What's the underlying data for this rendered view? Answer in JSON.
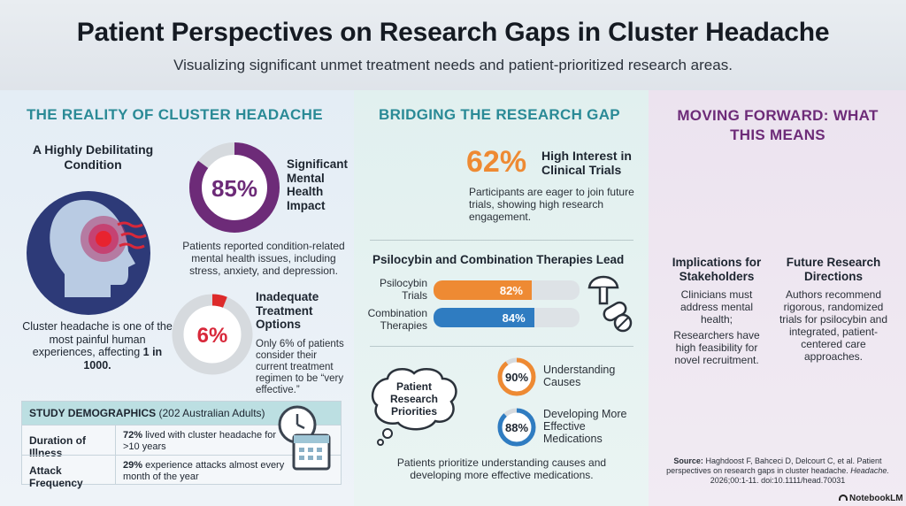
{
  "header": {
    "title": "Patient Perspectives on Research Gaps in Cluster Headache",
    "subtitle": "Visualizing significant unmet treatment needs and patient-prioritized research areas."
  },
  "reality": {
    "heading": "THE REALITY OF CLUSTER HEADACHE",
    "condition_title": "A Highly Debilitating Condition",
    "condition_text": "Cluster headache is one of the most painful human experiences, affecting",
    "condition_stat": "1 in 1000.",
    "mental": {
      "percent": 85,
      "label": "85%",
      "title": "Significant Mental Health Impact",
      "text": "Patients reported condition-related mental health issues, including stress, anxiety, and depression."
    },
    "treatment": {
      "percent": 6,
      "label": "6%",
      "title": "Inadequate Treatment Options",
      "text": "Only 6% of patients consider their current treatment regimen to be “very effective.”"
    },
    "demographics": {
      "heading": "STUDY DEMOGRAPHICS",
      "heading_detail": "(202 Australian Adults)",
      "rows": [
        {
          "label": "Duration of Illness",
          "stat": "72%",
          "text": "lived with cluster headache for >10 years"
        },
        {
          "label": "Attack Frequency",
          "stat": "29%",
          "text": "experience attacks almost every month of the year"
        }
      ]
    }
  },
  "gap": {
    "heading": "BRIDGING THE RESEARCH GAP",
    "interest_pct": "62%",
    "interest_title": "High Interest in Clinical Trials",
    "interest_text": "Participants are eager to join future trials, showing high research engagement.",
    "therapies_title": "Psilocybin and Combination Therapies Lead",
    "bars": [
      {
        "label": "Psilocybin Trials",
        "value": 82,
        "text": "82%",
        "color": "#ee8a33"
      },
      {
        "label": "Combination Therapies",
        "value": 84,
        "text": "84%",
        "color": "#2f7cc1"
      }
    ],
    "priorities_bubble": "Patient Research Priorities",
    "priorities": [
      {
        "value": 90,
        "text": "90%",
        "label": "Understanding Causes",
        "color": "#ee8a33"
      },
      {
        "value": 88,
        "text": "88%",
        "label": "Developing More Effective Medications",
        "color": "#2f7cc1"
      }
    ],
    "priorities_text": "Patients prioritize understanding causes and developing more effective medications."
  },
  "forward": {
    "heading": "MOVING FORWARD: WHAT THIS MEANS",
    "implications_title": "Implications for Stakeholders",
    "implications_text1": "Clinicians must address mental health;",
    "implications_text2": "Researchers have high feasibility for novel recruitment.",
    "future_title": "Future Research Directions",
    "future_text": "Authors recommend rigorous, randomized trials for psilocybin and integrated, patient-centered care approaches.",
    "source_label": "Source:",
    "source_text": "Haghdoost F, Bahceci D, Delcourt C, et al. Patient perspectives on research gaps in cluster headache.",
    "source_journal": "Headache.",
    "source_citation": "2026;00:1-11. doi:10.1111/head.70031",
    "brand": "NotebookLM"
  },
  "colors": {
    "teal": "#2a8a96",
    "purple": "#6d2b78",
    "orange": "#ee8a33",
    "blue": "#2f7cc1"
  }
}
